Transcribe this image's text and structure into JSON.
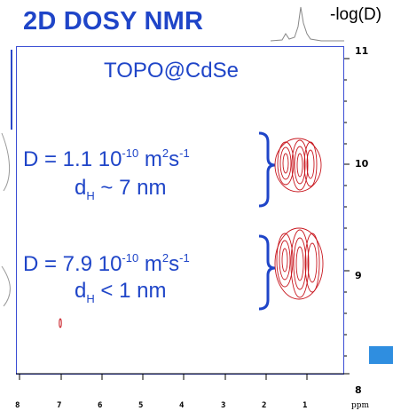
{
  "title": "2D DOSY NMR",
  "axis_title": "-log(D)",
  "sample": "TOPO@CdSe",
  "species": [
    {
      "d_prefix": "D = 1.1 10",
      "d_exp": "-10",
      "d_unit": " m",
      "d_unit_exp": "2",
      "d_unit2": "s",
      "d_unit2_exp": "-1",
      "dh_label": "d",
      "dh_sub": "H",
      "dh_value": " ~ 7 nm"
    },
    {
      "d_prefix": "D = 7.9 10",
      "d_exp": "-10",
      "d_unit": " m",
      "d_unit_exp": "2",
      "d_unit2": "s",
      "d_unit2_exp": "-1",
      "dh_label": "d",
      "dh_sub": "H",
      "dh_value": " < 1 nm"
    }
  ],
  "y_ticks": [
    "11",
    "10",
    "9",
    "8"
  ],
  "x_ticks": [
    "8",
    "7",
    "6",
    "5",
    "4",
    "3",
    "2",
    "1"
  ],
  "x_unit": "ppm",
  "colors": {
    "title_blue": "#1f45c8",
    "contour_red": "#c8161e",
    "accent_box": "#2f8ee0"
  }
}
